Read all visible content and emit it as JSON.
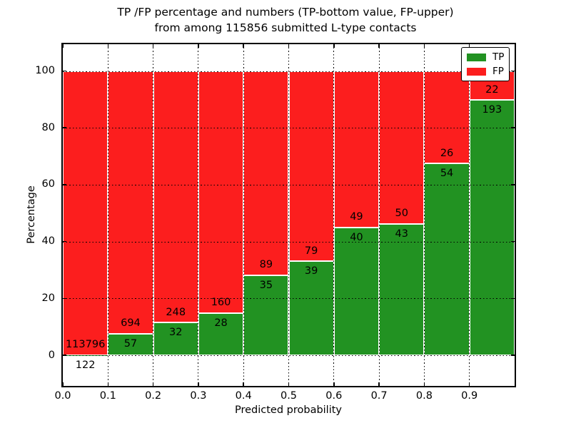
{
  "title": {
    "line1": "TP /FP percentage and numbers (TP-bottom value, FP-upper)",
    "line2": "from among 115856 submitted L-type contacts"
  },
  "y_axis": {
    "label": "Percentage",
    "ticks": [
      "0",
      "20",
      "40",
      "60",
      "80",
      "100"
    ],
    "tick_values": [
      0,
      20,
      40,
      60,
      80,
      100
    ]
  },
  "x_axis": {
    "label": "Predicted probability",
    "ticks": [
      "0.0",
      "0.1",
      "0.2",
      "0.3",
      "0.4",
      "0.5",
      "0.6",
      "0.7",
      "0.8",
      "0.9"
    ]
  },
  "legend": {
    "items": [
      {
        "label": "TP",
        "color": "#229222"
      },
      {
        "label": "FP",
        "color": "#fc1e1e"
      }
    ]
  },
  "colors": {
    "tp": "#229222",
    "fp": "#fc1e1e",
    "grid": "#000000",
    "background": "#ffffff"
  },
  "chart_data": {
    "type": "bar",
    "subtype": "stacked-normalized-percent",
    "title": "TP /FP percentage and numbers (TP-bottom value, FP-upper) from among 115856 submitted L-type contacts",
    "xlabel": "Predicted probability",
    "ylabel": "Percentage",
    "total_submitted": 115856,
    "bins": [
      "0.0-0.1",
      "0.1-0.2",
      "0.2-0.3",
      "0.3-0.4",
      "0.4-0.5",
      "0.5-0.6",
      "0.6-0.7",
      "0.7-0.8",
      "0.8-0.9",
      "0.9-1.0"
    ],
    "bin_edges": [
      0.0,
      0.1,
      0.2,
      0.3,
      0.4,
      0.5,
      0.6,
      0.7,
      0.8,
      0.9,
      1.0
    ],
    "series": [
      {
        "name": "TP",
        "position": "bottom",
        "color": "#229222",
        "counts": [
          122,
          57,
          32,
          28,
          35,
          39,
          40,
          43,
          54,
          193
        ]
      },
      {
        "name": "FP",
        "position": "top",
        "color": "#fc1e1e",
        "counts": [
          113796,
          694,
          248,
          160,
          89,
          79,
          49,
          50,
          26,
          22
        ]
      }
    ],
    "tp_percent": [
      0.11,
      7.59,
      11.43,
      14.89,
      28.23,
      33.05,
      44.94,
      46.24,
      67.5,
      89.77
    ],
    "xlim": [
      0.0,
      1.0
    ],
    "ylim": [
      -11,
      109.5
    ],
    "grid": true,
    "grid_style": "dotted",
    "legend_position": "upper right",
    "annotation_rule": "TP count below segment boundary, FP count above segment boundary"
  }
}
